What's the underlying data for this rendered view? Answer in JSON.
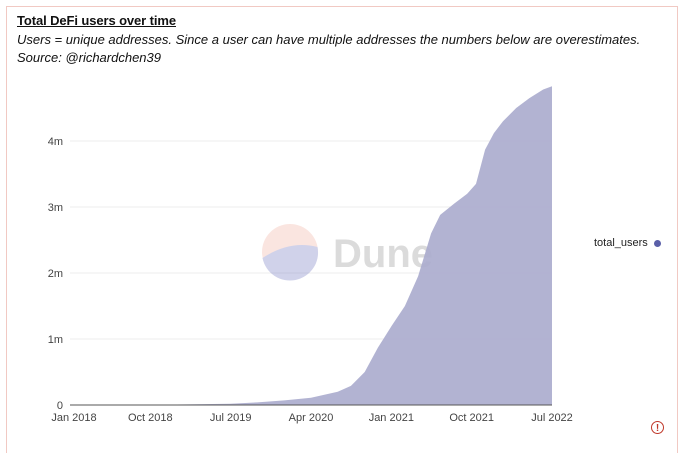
{
  "header": {
    "title": "Total DeFi users over time",
    "subtitle": "Users = unique addresses. Since a user can have multiple addresses the numbers below are overestimates. Source: @richardchen39"
  },
  "watermark": {
    "text": "Dune"
  },
  "legend": {
    "label": "total_users",
    "color": "#5a5fa8"
  },
  "colors": {
    "area_fill": "#abacce",
    "grid": "#ededed",
    "axis_text": "#444444"
  },
  "chart_data": {
    "type": "area",
    "title": "Total DeFi users over time",
    "xlabel": "",
    "ylabel": "",
    "x_ticks": [
      "Jan 2018",
      "Oct 2018",
      "Jul 2019",
      "Apr 2020",
      "Jan 2021",
      "Oct 2021",
      "Jul 2022"
    ],
    "y_ticks": [
      "0",
      "1m",
      "2m",
      "3m",
      "4m"
    ],
    "ylim": [
      0,
      5000000
    ],
    "x_range": [
      "2018-01-01",
      "2022-07-01"
    ],
    "grid": true,
    "legend_position": "right",
    "series": [
      {
        "name": "total_users",
        "x": [
          "2018-01-01",
          "2018-07-01",
          "2019-01-01",
          "2019-07-01",
          "2019-10-01",
          "2020-01-01",
          "2020-04-01",
          "2020-07-01",
          "2020-08-15",
          "2020-10-01",
          "2020-11-15",
          "2021-01-01",
          "2021-02-15",
          "2021-04-01",
          "2021-05-15",
          "2021-06-15",
          "2021-08-01",
          "2021-09-15",
          "2021-10-15",
          "2021-11-15",
          "2021-12-15",
          "2022-01-15",
          "2022-03-01",
          "2022-04-15",
          "2022-06-01",
          "2022-07-01"
        ],
        "values": [
          0,
          2000,
          8000,
          20000,
          40000,
          70000,
          110000,
          200000,
          290000,
          500000,
          870000,
          1200000,
          1500000,
          1950000,
          2600000,
          2880000,
          3050000,
          3200000,
          3350000,
          3870000,
          4120000,
          4300000,
          4500000,
          4650000,
          4780000,
          4830000
        ]
      }
    ]
  }
}
